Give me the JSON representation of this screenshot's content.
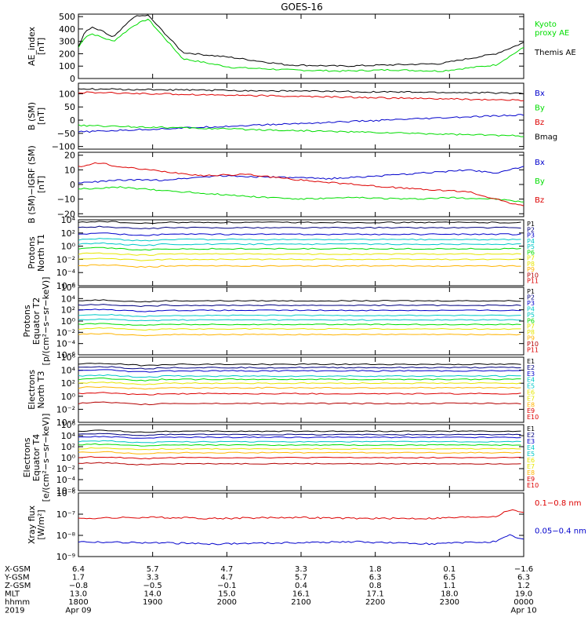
{
  "title": "GOES-16",
  "colors": {
    "black": "#000000",
    "green": "#00dd00",
    "blue": "#0000cc",
    "red": "#dd0000",
    "navy": "#000080",
    "cyan": "#00c8c8",
    "yellow": "#e6e600",
    "orange": "#ffb400",
    "darkred": "#b40000"
  },
  "chart_data": [
    {
      "type": "line",
      "panel": "ae",
      "ylabel": "AE_index\n[nT]",
      "ylim": [
        0,
        520
      ],
      "yticks": [
        0,
        100,
        200,
        300,
        400,
        500
      ],
      "ytick_labels": [
        "0",
        "100",
        "200",
        "300",
        "400",
        "500"
      ],
      "log": false,
      "legend": [
        {
          "text": "Kyoto\nproxy AE",
          "color": "green"
        },
        {
          "text": "Themis AE",
          "color": "black"
        }
      ],
      "series": [
        {
          "name": "Kyoto proxy AE",
          "color": "green",
          "x": [
            0,
            10,
            20,
            35,
            50,
            80,
            100,
            150,
            220,
            300,
            380,
            450,
            520,
            600,
            640
          ],
          "y": [
            250,
            340,
            360,
            330,
            300,
            430,
            480,
            160,
            90,
            70,
            60,
            70,
            60,
            110,
            250
          ]
        },
        {
          "name": "Themis AE",
          "color": "black",
          "x": [
            0,
            10,
            20,
            35,
            50,
            80,
            100,
            150,
            220,
            300,
            380,
            450,
            520,
            600,
            640
          ],
          "y": [
            260,
            380,
            410,
            380,
            330,
            500,
            510,
            210,
            170,
            110,
            100,
            110,
            120,
            200,
            290
          ]
        }
      ]
    },
    {
      "type": "line",
      "panel": "bsm",
      "ylabel": "B (SM)\n[nT]",
      "ylim": [
        -110,
        140
      ],
      "yticks": [
        -100,
        -50,
        0,
        50,
        100
      ],
      "ytick_labels": [
        "−100",
        "−50",
        "0",
        "50",
        "100"
      ],
      "log": false,
      "legend": [
        {
          "text": "Bx",
          "color": "blue"
        },
        {
          "text": "By",
          "color": "green"
        },
        {
          "text": "Bz",
          "color": "red"
        },
        {
          "text": "Bmag",
          "color": "black"
        }
      ],
      "series": [
        {
          "name": "Bx",
          "color": "blue",
          "x": [
            0,
            640
          ],
          "y": [
            -45,
            20
          ]
        },
        {
          "name": "By",
          "color": "green",
          "x": [
            0,
            640
          ],
          "y": [
            -20,
            -60
          ]
        },
        {
          "name": "Bz",
          "color": "red",
          "x": [
            0,
            640
          ],
          "y": [
            105,
            75
          ]
        },
        {
          "name": "Bmag",
          "color": "black",
          "x": [
            0,
            640
          ],
          "y": [
            118,
            102
          ]
        }
      ]
    },
    {
      "type": "line",
      "panel": "bigrf",
      "ylabel": "B (SM)−IGRF (SM)\n[nT]",
      "ylim": [
        -22,
        22
      ],
      "yticks": [
        -20,
        -10,
        0,
        10,
        20
      ],
      "ytick_labels": [
        "−20",
        "−10",
        "0",
        "10",
        "20"
      ],
      "log": false,
      "legend": [
        {
          "text": "Bx",
          "color": "blue"
        },
        {
          "text": "By",
          "color": "green"
        },
        {
          "text": "Bz",
          "color": "red"
        }
      ],
      "series": [
        {
          "name": "Bx",
          "color": "blue",
          "x": [
            0,
            60,
            120,
            200,
            280,
            360,
            440,
            500,
            560,
            600,
            640
          ],
          "y": [
            1,
            3,
            3,
            6,
            5,
            4,
            6,
            8,
            10,
            8,
            12
          ]
        },
        {
          "name": "By",
          "color": "green",
          "x": [
            0,
            60,
            120,
            180,
            240,
            320,
            400,
            480,
            540,
            600,
            640
          ],
          "y": [
            -3,
            -2,
            -4,
            -6,
            -8,
            -10,
            -9,
            -10,
            -9,
            -10,
            -12
          ]
        },
        {
          "name": "Bz",
          "color": "red",
          "x": [
            0,
            30,
            60,
            120,
            180,
            240,
            320,
            400,
            480,
            560,
            600,
            640
          ],
          "y": [
            12,
            15,
            12,
            9,
            6,
            7,
            3,
            0,
            -3,
            -5,
            -10,
            -15
          ]
        }
      ]
    },
    {
      "type": "line",
      "panel": "protons_t1",
      "ylabel": "Protons\nNorth T1",
      "ylim": [
        -6,
        4
      ],
      "yticks": [
        -6,
        -4,
        -2,
        0,
        2,
        4
      ],
      "ytick_labels": [
        "10⁻⁶",
        "10⁻⁴",
        "10⁻²",
        "10⁰",
        "10²",
        "10⁴"
      ],
      "log": true,
      "legend_items": [
        "P1",
        "P2",
        "P3",
        "P4",
        "P5",
        "P6",
        "P7",
        "P8",
        "P9",
        "P10",
        "P11"
      ],
      "legend_colors": [
        "black",
        "navy",
        "blue",
        "cyan",
        "cyan",
        "green",
        "yellow",
        "yellow",
        "orange",
        "darkred",
        "red"
      ],
      "levels": [
        3.6,
        2.8,
        1.8,
        1.0,
        0.3,
        -0.4,
        -1.2,
        -2.0,
        -3.0
      ],
      "level_colors": [
        "black",
        "navy",
        "blue",
        "cyan",
        "cyan",
        "green",
        "yellow",
        "yellow",
        "orange"
      ]
    },
    {
      "type": "line",
      "panel": "protons_t2",
      "ylabel": "Protons\nEquator T2\n[p/(cm²−s−sr−keV)]",
      "ylim": [
        -6,
        6
      ],
      "yticks": [
        -6,
        -4,
        -2,
        0,
        2,
        4,
        6
      ],
      "ytick_labels": [
        "10⁻⁶",
        "10⁻⁴",
        "10⁻²",
        "10⁰",
        "10²",
        "10⁴",
        "10⁶"
      ],
      "log": true,
      "legend_items": [
        "P1",
        "P2",
        "P3",
        "P4",
        "P5",
        "P6",
        "P7",
        "P8",
        "P9",
        "P10",
        "P11"
      ],
      "legend_colors": [
        "black",
        "navy",
        "blue",
        "cyan",
        "cyan",
        "green",
        "yellow",
        "yellow",
        "orange",
        "darkred",
        "red"
      ],
      "levels": [
        3.6,
        2.8,
        1.9,
        1.0,
        0.2,
        -0.6,
        -1.4,
        -2.4
      ],
      "level_colors": [
        "black",
        "navy",
        "blue",
        "cyan",
        "cyan",
        "green",
        "yellow",
        "orange"
      ]
    },
    {
      "type": "line",
      "panel": "electrons_t3",
      "ylabel": "Electrons\nNorth T3",
      "ylim": [
        -4,
        6
      ],
      "yticks": [
        -4,
        -2,
        0,
        2,
        4,
        6
      ],
      "ytick_labels": [
        "10⁻⁴",
        "10⁻²",
        "10⁰",
        "10²",
        "10⁴",
        "10⁶"
      ],
      "log": true,
      "legend_items": [
        "E1",
        "E2",
        "E3",
        "E4",
        "E5",
        "E6",
        "E7",
        "E8",
        "E9",
        "E10"
      ],
      "legend_colors": [
        "black",
        "navy",
        "blue",
        "cyan",
        "cyan",
        "yellow",
        "yellow",
        "orange",
        "red",
        "red"
      ],
      "levels": [
        4.9,
        4.4,
        3.9,
        3.1,
        2.6,
        2.0,
        1.3,
        0.4,
        -1.1
      ],
      "level_colors": [
        "black",
        "navy",
        "blue",
        "cyan",
        "green",
        "yellow",
        "orange",
        "red",
        "darkred"
      ]
    },
    {
      "type": "line",
      "panel": "electrons_t4",
      "ylabel": "Electrons\nEquator T4\n[e/(cm²−s−sr−keV)]",
      "ylim": [
        -6,
        6
      ],
      "yticks": [
        -6,
        -4,
        -2,
        0,
        2,
        4,
        6
      ],
      "ytick_labels": [
        "10⁻⁶",
        "10⁻⁴",
        "10⁻²",
        "10⁰",
        "10²",
        "10⁴",
        "10⁶"
      ],
      "log": true,
      "legend_items": [
        "E1",
        "E2",
        "E3",
        "E4",
        "E5",
        "E6",
        "E7",
        "E8",
        "E9",
        "E10"
      ],
      "legend_colors": [
        "black",
        "navy",
        "blue",
        "cyan",
        "cyan",
        "yellow",
        "yellow",
        "orange",
        "red",
        "red"
      ],
      "levels": [
        4.8,
        4.2,
        3.7,
        2.9,
        2.3,
        1.6,
        0.9,
        0.0,
        -1.1
      ],
      "level_colors": [
        "black",
        "navy",
        "blue",
        "cyan",
        "green",
        "yellow",
        "orange",
        "red",
        "darkred"
      ]
    },
    {
      "type": "line",
      "panel": "xray",
      "ylabel": "Xray flux\n[W/m²]",
      "ylim": [
        -9,
        -6
      ],
      "yticks": [
        -9,
        -8,
        -7,
        -6
      ],
      "ytick_labels": [
        "10⁻⁹",
        "10⁻⁸",
        "10⁻⁷",
        "10⁻⁶"
      ],
      "log": true,
      "legend": [
        {
          "text": "0.1−0.8 nm",
          "color": "red"
        },
        {
          "text": "0.05−0.4 nm",
          "color": "blue"
        }
      ],
      "series": [
        {
          "name": "0.1−0.8 nm",
          "color": "red",
          "x": [
            0,
            100,
            200,
            300,
            400,
            500,
            600,
            620,
            640
          ],
          "y": [
            -7.2,
            -7.15,
            -7.2,
            -7.15,
            -7.2,
            -7.2,
            -7.1,
            -6.8,
            -6.9
          ]
        },
        {
          "name": "0.05−0.4 nm",
          "color": "blue",
          "x": [
            0,
            100,
            200,
            300,
            400,
            500,
            600,
            620,
            640
          ],
          "y": [
            -8.3,
            -8.35,
            -8.4,
            -8.35,
            -8.3,
            -8.4,
            -8.3,
            -8.0,
            -8.2
          ]
        }
      ]
    }
  ],
  "x_axis": {
    "row_labels": [
      "X-GSM",
      "Y-GSM",
      "Z-GSM",
      "MLT",
      "hhmm",
      "2019"
    ],
    "columns": [
      {
        "values": [
          "6.4",
          "1.7",
          "−0.8",
          "13.0",
          "1800",
          "Apr 09"
        ]
      },
      {
        "values": [
          "5.7",
          "3.3",
          "−0.5",
          "14.0",
          "1900",
          ""
        ]
      },
      {
        "values": [
          "4.7",
          "4.7",
          "−0.1",
          "15.0",
          "2000",
          ""
        ]
      },
      {
        "values": [
          "3.3",
          "5.7",
          "0.4",
          "16.1",
          "2100",
          ""
        ]
      },
      {
        "values": [
          "1.8",
          "6.3",
          "0.8",
          "17.1",
          "2200",
          ""
        ]
      },
      {
        "values": [
          "0.1",
          "6.5",
          "1.1",
          "18.0",
          "2300",
          ""
        ]
      },
      {
        "values": [
          "−1.6",
          "6.3",
          "1.2",
          "19.0",
          "0000",
          "Apr 10"
        ]
      }
    ]
  }
}
